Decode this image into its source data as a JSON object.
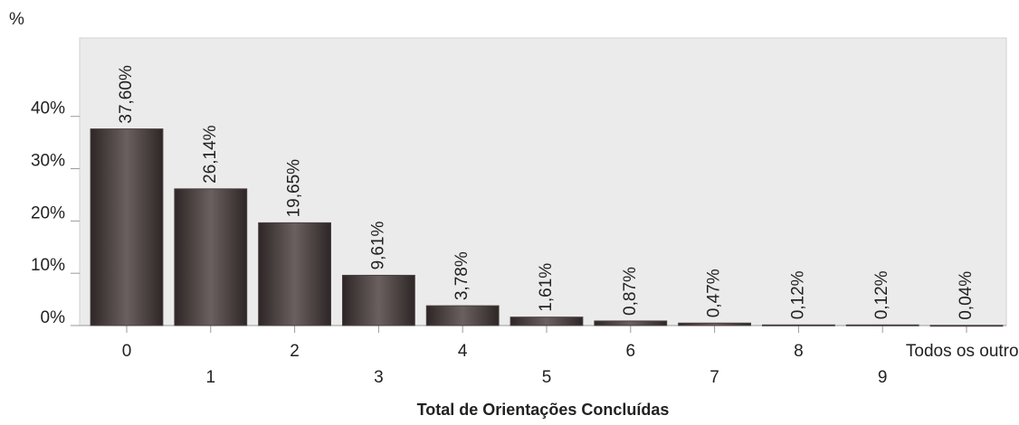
{
  "chart_data": {
    "type": "bar",
    "y_axis_label": "%",
    "x_axis_label": "Total de Orientações Concluídas",
    "categories": [
      "0",
      "1",
      "2",
      "3",
      "4",
      "5",
      "6",
      "7",
      "8",
      "9",
      "Todos os outros"
    ],
    "values": [
      37.6,
      26.14,
      19.65,
      9.61,
      3.78,
      1.61,
      0.87,
      0.47,
      0.12,
      0.12,
      0.04
    ],
    "value_labels": [
      "37,60%",
      "26,14%",
      "19,65%",
      "9,61%",
      "3,78%",
      "1,61%",
      "0,87%",
      "0,47%",
      "0,12%",
      "0,12%",
      "0,04%"
    ],
    "color": "#4a3f3f",
    "ylim": [
      0,
      55
    ],
    "yticks": [
      {
        "value": 0,
        "label": "0%"
      },
      {
        "value": 10,
        "label": "10%"
      },
      {
        "value": 20,
        "label": "20%"
      },
      {
        "value": 30,
        "label": "30%"
      },
      {
        "value": 40,
        "label": "40%"
      }
    ],
    "grid": false
  }
}
